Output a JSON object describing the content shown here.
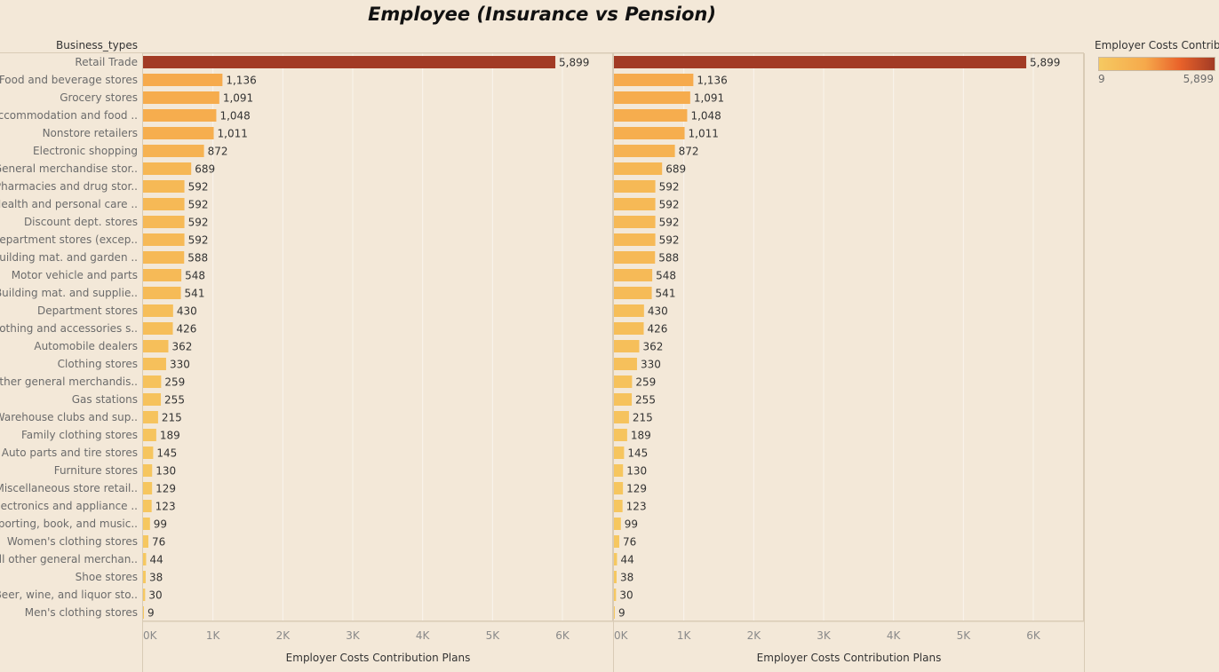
{
  "title": "Employee  (Insurance vs Pension)",
  "colors": {
    "background": "#f3e8d8",
    "low": "#f6c961",
    "mid": "#f6a94b",
    "high": "#a23b25"
  },
  "legend": {
    "title": "Employer Costs Contrib..",
    "min_label": "9",
    "max_label": "5,899"
  },
  "chart_data": [
    {
      "type": "bar",
      "orientation": "horizontal",
      "row_header": "Business_types",
      "xlabel": "Employer Costs Contribution Plans",
      "xlim": [
        0,
        6800
      ],
      "x_ticks": [
        "0K",
        "1K",
        "2K",
        "3K",
        "4K",
        "5K",
        "6K"
      ],
      "categories": [
        "Retail Trade",
        "Food and beverage stores",
        "Grocery stores",
        "Accommodation and food ..",
        "Nonstore retailers",
        "Electronic shopping",
        "General merchandise stor..",
        "Pharmacies and drug stor..",
        "Health and personal care ..",
        "Discount dept. stores",
        "Department stores (excep..",
        "Building mat. and garden ..",
        "Motor vehicle and parts",
        "Building mat. and supplie..",
        "Department stores",
        "Clothing and accessories s..",
        "Automobile dealers",
        "Clothing stores",
        "Other general merchandis..",
        "Gas stations",
        "Warehouse clubs and sup..",
        "Family clothing stores",
        "Auto parts and tire stores",
        "Furniture stores",
        "Miscellaneous store retail..",
        "Electronics and appliance ..",
        "Sporting, book, and  music..",
        "Women's clothing stores",
        "All other general merchan..",
        "Shoe stores",
        "Beer, wine, and liquor sto..",
        "Men's clothing stores"
      ],
      "values": [
        5899,
        1136,
        1091,
        1048,
        1011,
        872,
        689,
        592,
        592,
        592,
        592,
        588,
        548,
        541,
        430,
        426,
        362,
        330,
        259,
        255,
        215,
        189,
        145,
        130,
        129,
        123,
        99,
        76,
        44,
        38,
        30,
        9
      ],
      "value_labels": [
        "5,899",
        "1,136",
        "1,091",
        "1,048",
        "1,011",
        "872",
        "689",
        "592",
        "592",
        "592",
        "592",
        "588",
        "548",
        "541",
        "430",
        "426",
        "362",
        "330",
        "259",
        "255",
        "215",
        "189",
        "145",
        "130",
        "129",
        "123",
        "99",
        "76",
        "44",
        "38",
        "30",
        "9"
      ]
    },
    {
      "type": "bar",
      "orientation": "horizontal",
      "xlabel": "Employer Costs Contribution Plans",
      "xlim": [
        0,
        6800
      ],
      "x_ticks": [
        "0K",
        "1K",
        "2K",
        "3K",
        "4K",
        "5K",
        "6K"
      ],
      "values": [
        5899,
        1136,
        1091,
        1048,
        1011,
        872,
        689,
        592,
        592,
        592,
        592,
        588,
        548,
        541,
        430,
        426,
        362,
        330,
        259,
        255,
        215,
        189,
        145,
        130,
        129,
        123,
        99,
        76,
        44,
        38,
        30,
        9
      ],
      "value_labels": [
        "5,899",
        "1,136",
        "1,091",
        "1,048",
        "1,011",
        "872",
        "689",
        "592",
        "592",
        "592",
        "592",
        "588",
        "548",
        "541",
        "430",
        "426",
        "362",
        "330",
        "259",
        "255",
        "215",
        "189",
        "145",
        "130",
        "129",
        "123",
        "99",
        "76",
        "44",
        "38",
        "30",
        "9"
      ]
    }
  ]
}
